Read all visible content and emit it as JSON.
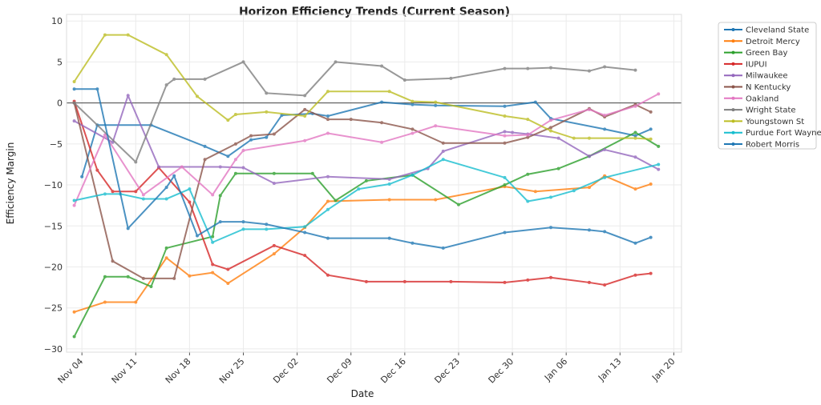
{
  "chart_data": {
    "type": "line",
    "title": "Horizon Efficiency Trends (Current Season)",
    "xlabel": "Date",
    "ylabel": "Efficiency Margin",
    "xlim": [
      "Nov 02",
      "Jan 21"
    ],
    "ylim": [
      -30.4,
      10.8
    ],
    "x_ticks": [
      "Nov 04",
      "Nov 11",
      "Nov 18",
      "Nov 25",
      "Dec 02",
      "Dec 09",
      "Dec 16",
      "Dec 23",
      "Dec 30",
      "Jan 06",
      "Jan 13",
      "Jan 20"
    ],
    "y_ticks": [
      "10",
      "5",
      "0",
      "−5",
      "−10",
      "−15",
      "−20",
      "−25",
      "−30"
    ],
    "y_tick_values": [
      10,
      5,
      0,
      -5,
      -10,
      -15,
      -20,
      -25,
      -30
    ],
    "reference_line": 0,
    "grid": true,
    "legend_position": "outside-top-right",
    "series": [
      {
        "name": "Cleveland State",
        "color": "#1f77b4",
        "x": [
          "Nov 04",
          "Nov 06",
          "Nov 13",
          "Nov 20",
          "Nov 23",
          "Nov 26",
          "Nov 28",
          "Nov 30",
          "Dec 04",
          "Dec 06",
          "Dec 13",
          "Dec 17",
          "Dec 20",
          "Dec 29",
          "Jan 02",
          "Jan 04",
          "Jan 11",
          "Jan 15",
          "Jan 17"
        ],
        "y": [
          -9.0,
          -2.7,
          -2.7,
          -5.3,
          -6.5,
          -4.5,
          -4.2,
          -1.5,
          -1.3,
          -1.6,
          0.1,
          -0.2,
          -0.3,
          -0.4,
          0.1,
          -1.9,
          -3.2,
          -4.0,
          -3.2
        ]
      },
      {
        "name": "Detroit Mercy",
        "color": "#ff7f0e",
        "x": [
          "Nov 03",
          "Nov 07",
          "Nov 11",
          "Nov 15",
          "Nov 18",
          "Nov 21",
          "Nov 23",
          "Nov 29",
          "Dec 03",
          "Dec 06",
          "Dec 14",
          "Dec 20",
          "Dec 29",
          "Jan 02",
          "Jan 09",
          "Jan 11",
          "Jan 15",
          "Jan 17"
        ],
        "y": [
          -25.5,
          -24.3,
          -24.3,
          -18.9,
          -21.1,
          -20.7,
          -22.0,
          -18.4,
          -15.2,
          -12.0,
          -11.8,
          -11.8,
          -10.2,
          -10.8,
          -10.3,
          -8.9,
          -10.5,
          -9.9
        ]
      },
      {
        "name": "Green Bay",
        "color": "#2ca02c",
        "x": [
          "Nov 03",
          "Nov 07",
          "Nov 10",
          "Nov 13",
          "Nov 15",
          "Nov 21",
          "Nov 22",
          "Nov 24",
          "Nov 29",
          "Dec 04",
          "Dec 07",
          "Dec 11",
          "Dec 17",
          "Dec 23",
          "Dec 29",
          "Jan 01",
          "Jan 05",
          "Jan 09",
          "Jan 15",
          "Jan 18"
        ],
        "y": [
          -28.5,
          -21.2,
          -21.2,
          -22.4,
          -17.7,
          -16.3,
          -11.3,
          -8.6,
          -8.6,
          -8.6,
          -11.9,
          -9.5,
          -8.8,
          -12.4,
          -10.0,
          -8.7,
          -8.0,
          -6.5,
          -3.6,
          -5.3
        ]
      },
      {
        "name": "IUPUI",
        "color": "#d62728",
        "x": [
          "Nov 03",
          "Nov 06",
          "Nov 08",
          "Nov 11",
          "Nov 14",
          "Nov 18",
          "Nov 21",
          "Nov 23",
          "Nov 29",
          "Dec 03",
          "Dec 06",
          "Dec 11",
          "Dec 16",
          "Dec 22",
          "Dec 29",
          "Jan 01",
          "Jan 04",
          "Jan 09",
          "Jan 11",
          "Jan 15",
          "Jan 17"
        ],
        "y": [
          0.2,
          -8.2,
          -10.8,
          -10.8,
          -7.9,
          -12.1,
          -19.7,
          -20.3,
          -17.4,
          -18.6,
          -21.0,
          -21.8,
          -21.8,
          -21.8,
          -21.9,
          -21.6,
          -21.3,
          -21.9,
          -22.2,
          -21.0,
          -20.8
        ]
      },
      {
        "name": "Milwaukee",
        "color": "#9467bd",
        "x": [
          "Nov 03",
          "Nov 08",
          "Nov 10",
          "Nov 14",
          "Nov 22",
          "Nov 25",
          "Nov 29",
          "Dec 06",
          "Dec 14",
          "Dec 19",
          "Dec 21",
          "Dec 29",
          "Dec 30",
          "Jan 01",
          "Jan 05",
          "Jan 09",
          "Jan 11",
          "Jan 15",
          "Jan 18"
        ],
        "y": [
          -2.2,
          -4.8,
          0.9,
          -7.8,
          -7.8,
          -7.9,
          -9.8,
          -9.0,
          -9.3,
          -8.0,
          -5.9,
          -3.5,
          -3.6,
          -3.8,
          -4.3,
          -6.5,
          -5.7,
          -6.6,
          -8.1
        ]
      },
      {
        "name": "N Kentucky",
        "color": "#8c564b",
        "x": [
          "Nov 03",
          "Nov 08",
          "Nov 12",
          "Nov 16",
          "Nov 20",
          "Nov 24",
          "Nov 26",
          "Nov 29",
          "Dec 03",
          "Dec 06",
          "Dec 09",
          "Dec 13",
          "Dec 17",
          "Dec 21",
          "Dec 29",
          "Jan 01",
          "Jan 04",
          "Jan 09",
          "Jan 11",
          "Jan 15",
          "Jan 17"
        ],
        "y": [
          0.0,
          -19.3,
          -21.4,
          -21.4,
          -6.9,
          -5.0,
          -4.0,
          -3.8,
          -0.8,
          -2.0,
          -2.0,
          -2.4,
          -3.2,
          -4.9,
          -4.9,
          -4.2,
          -3.0,
          -0.7,
          -1.7,
          -0.2,
          -1.1
        ]
      },
      {
        "name": "Oakland",
        "color": "#e377c2",
        "x": [
          "Nov 03",
          "Nov 07",
          "Nov 12",
          "Nov 17",
          "Nov 21",
          "Nov 24",
          "Nov 25",
          "Dec 03",
          "Dec 06",
          "Dec 13",
          "Dec 17",
          "Dec 20",
          "Dec 29",
          "Jan 01",
          "Jan 04",
          "Jan 09",
          "Jan 11",
          "Jan 15",
          "Jan 18"
        ],
        "y": [
          -12.5,
          -3.9,
          -11.2,
          -7.8,
          -11.2,
          -6.9,
          -5.8,
          -4.6,
          -3.7,
          -4.8,
          -3.7,
          -2.8,
          -4.0,
          -3.9,
          -2.1,
          -0.8,
          -1.5,
          -0.4,
          1.1
        ]
      },
      {
        "name": "Wright State",
        "color": "#7f7f7f",
        "x": [
          "Nov 03",
          "Nov 11",
          "Nov 15",
          "Nov 16",
          "Nov 20",
          "Nov 25",
          "Nov 28",
          "Dec 03",
          "Dec 07",
          "Dec 13",
          "Dec 16",
          "Dec 22",
          "Dec 29",
          "Jan 01",
          "Jan 04",
          "Jan 09",
          "Jan 11",
          "Jan 15"
        ],
        "y": [
          0.0,
          -7.2,
          2.2,
          2.9,
          2.9,
          5.0,
          1.2,
          0.9,
          5.0,
          4.5,
          2.8,
          3.0,
          4.2,
          4.2,
          4.3,
          3.9,
          4.4,
          4.0
        ]
      },
      {
        "name": "Youngstown St",
        "color": "#bcbd22",
        "x": [
          "Nov 03",
          "Nov 07",
          "Nov 10",
          "Nov 15",
          "Nov 19",
          "Nov 23",
          "Nov 24",
          "Nov 28",
          "Dec 03",
          "Dec 06",
          "Dec 14",
          "Dec 17",
          "Dec 20",
          "Dec 29",
          "Jan 01",
          "Jan 04",
          "Jan 07",
          "Jan 09",
          "Jan 15",
          "Jan 17"
        ],
        "y": [
          2.6,
          8.3,
          8.3,
          5.9,
          0.8,
          -2.1,
          -1.4,
          -1.1,
          -1.6,
          1.4,
          1.4,
          0.2,
          0.1,
          -1.6,
          -2.0,
          -3.4,
          -4.3,
          -4.3,
          -4.3,
          -4.4
        ]
      },
      {
        "name": "Purdue Fort Wayne",
        "color": "#17becf",
        "x": [
          "Nov 03",
          "Nov 07",
          "Nov 09",
          "Nov 12",
          "Nov 15",
          "Nov 18",
          "Nov 21",
          "Nov 25",
          "Nov 28",
          "Dec 03",
          "Dec 06",
          "Dec 10",
          "Dec 14",
          "Dec 17",
          "Dec 21",
          "Dec 29",
          "Jan 01",
          "Jan 04",
          "Jan 07",
          "Jan 11",
          "Jan 18"
        ],
        "y": [
          -11.9,
          -11.1,
          -11.1,
          -11.7,
          -11.7,
          -10.5,
          -17.0,
          -15.4,
          -15.4,
          -15.1,
          -13.0,
          -10.5,
          -9.9,
          -8.8,
          -6.9,
          -9.1,
          -12.0,
          -11.5,
          -10.7,
          -9.1,
          -7.5
        ]
      },
      {
        "name": "Robert Morris",
        "color": "#1f77b4",
        "x": [
          "Nov 03",
          "Nov 06",
          "Nov 10",
          "Nov 15",
          "Nov 16",
          "Nov 19",
          "Nov 22",
          "Nov 25",
          "Nov 28",
          "Dec 03",
          "Dec 06",
          "Dec 14",
          "Dec 17",
          "Dec 21",
          "Dec 29",
          "Jan 04",
          "Jan 09",
          "Jan 11",
          "Jan 15",
          "Jan 17"
        ],
        "y": [
          1.7,
          1.7,
          -15.3,
          -10.3,
          -8.9,
          -16.2,
          -14.5,
          -14.5,
          -14.8,
          -15.8,
          -16.5,
          -16.5,
          -17.1,
          -17.7,
          -15.8,
          -15.2,
          -15.5,
          -15.7,
          -17.1,
          -16.4
        ]
      }
    ]
  }
}
